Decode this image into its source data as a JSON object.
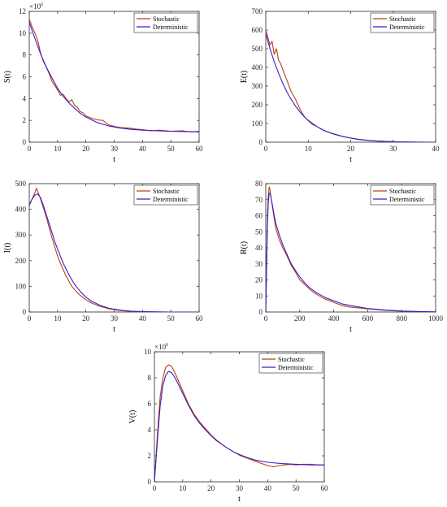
{
  "chart_data": [
    {
      "type": "line",
      "xlabel": "t",
      "ylabel": "S(t)",
      "xlim": [
        0,
        60
      ],
      "ylim": [
        0,
        12
      ],
      "y_multiplier": "×10^6",
      "xticks": [
        "0",
        "10",
        "20",
        "30",
        "40",
        "50",
        "60"
      ],
      "yticks": [
        "0",
        "2",
        "4",
        "6",
        "8",
        "10",
        "12"
      ],
      "legend_position": "top-right",
      "series": [
        {
          "name": "Stochastic",
          "color": "#b5401c",
          "x": [
            0,
            1,
            2,
            3,
            4,
            5,
            6,
            7,
            8,
            9,
            10,
            11,
            12,
            13,
            14,
            15,
            16,
            17,
            18,
            19,
            20,
            22,
            24,
            26,
            28,
            30,
            32,
            35,
            38,
            40,
            43,
            46,
            50,
            54,
            57,
            60
          ],
          "y": [
            11.3,
            10.6,
            10.0,
            9.3,
            8.2,
            7.4,
            6.9,
            6.3,
            5.6,
            5.2,
            4.8,
            4.3,
            4.4,
            4.0,
            3.7,
            3.9,
            3.4,
            3.2,
            2.8,
            2.7,
            2.4,
            2.2,
            2.05,
            2.0,
            1.6,
            1.45,
            1.35,
            1.3,
            1.2,
            1.15,
            1.05,
            1.1,
            1.0,
            1.05,
            0.95,
            1.0
          ]
        },
        {
          "name": "Deterministic",
          "color": "#3a1fc4",
          "x": [
            0,
            2,
            4,
            6,
            8,
            10,
            12,
            14,
            16,
            18,
            20,
            24,
            28,
            32,
            36,
            40,
            45,
            50,
            55,
            60
          ],
          "y": [
            11.0,
            9.5,
            8.1,
            6.9,
            5.9,
            4.95,
            4.2,
            3.6,
            3.1,
            2.65,
            2.3,
            1.8,
            1.5,
            1.3,
            1.18,
            1.1,
            1.04,
            1.0,
            0.98,
            0.95
          ]
        }
      ]
    },
    {
      "type": "line",
      "xlabel": "t",
      "ylabel": "E(t)",
      "xlim": [
        0,
        40
      ],
      "ylim": [
        0,
        700
      ],
      "xticks": [
        "0",
        "10",
        "20",
        "30",
        "40"
      ],
      "yticks": [
        "0",
        "100",
        "200",
        "300",
        "400",
        "500",
        "600",
        "700"
      ],
      "legend_position": "top-right",
      "series": [
        {
          "name": "Stochastic",
          "color": "#b5401c",
          "x": [
            0,
            0.5,
            1,
            1.5,
            2,
            2.5,
            3,
            3.5,
            4,
            4.5,
            5,
            6,
            7,
            8,
            9,
            10,
            11,
            12,
            13,
            14,
            15,
            16,
            18,
            20,
            22,
            25,
            28,
            32,
            36,
            40
          ],
          "y": [
            600,
            560,
            520,
            540,
            470,
            500,
            440,
            420,
            390,
            360,
            330,
            270,
            230,
            180,
            140,
            115,
            95,
            85,
            70,
            60,
            52,
            45,
            32,
            22,
            14,
            8,
            4,
            1,
            0,
            0
          ]
        },
        {
          "name": "Deterministic",
          "color": "#3a1fc4",
          "x": [
            0,
            1,
            2,
            3,
            4,
            5,
            6,
            7,
            8,
            9,
            10,
            12,
            14,
            16,
            18,
            20,
            22,
            25,
            28,
            32,
            36,
            40
          ],
          "y": [
            580,
            500,
            430,
            370,
            315,
            268,
            228,
            193,
            163,
            138,
            117,
            84,
            60,
            43,
            31,
            22,
            15,
            8,
            4,
            1.5,
            0.5,
            0
          ]
        }
      ]
    },
    {
      "type": "line",
      "xlabel": "t",
      "ylabel": "I(t)",
      "xlim": [
        0,
        60
      ],
      "ylim": [
        0,
        500
      ],
      "xticks": [
        "0",
        "10",
        "20",
        "30",
        "40",
        "50",
        "60"
      ],
      "yticks": [
        "0",
        "100",
        "200",
        "300",
        "400",
        "500"
      ],
      "legend_position": "top-right",
      "series": [
        {
          "name": "Stochastic",
          "color": "#b5401c",
          "x": [
            0,
            1,
            2,
            2.5,
            3,
            4,
            5,
            6,
            7,
            8,
            9,
            10,
            11,
            12,
            13,
            14,
            15,
            16,
            17,
            18,
            20,
            22,
            24,
            26,
            28,
            30,
            33,
            36,
            40,
            45,
            50,
            55,
            60
          ],
          "y": [
            420,
            440,
            465,
            482,
            470,
            440,
            405,
            370,
            330,
            290,
            255,
            218,
            190,
            165,
            140,
            120,
            100,
            88,
            75,
            65,
            48,
            35,
            26,
            19,
            13,
            9,
            5,
            3,
            1,
            0,
            0,
            0,
            0
          ]
        },
        {
          "name": "Deterministic",
          "color": "#3a1fc4",
          "x": [
            0,
            1,
            2,
            3,
            4,
            5,
            6,
            7,
            8,
            9,
            10,
            12,
            14,
            16,
            18,
            20,
            22,
            25,
            28,
            30,
            33,
            36,
            40,
            45,
            50,
            55,
            60
          ],
          "y": [
            415,
            440,
            455,
            460,
            445,
            415,
            380,
            345,
            310,
            275,
            245,
            190,
            145,
            108,
            80,
            58,
            42,
            26,
            15,
            11,
            6,
            3,
            1.5,
            0.5,
            0,
            0,
            0
          ]
        }
      ]
    },
    {
      "type": "line",
      "xlabel": "t",
      "ylabel": "R(t)",
      "xlim": [
        0,
        1000
      ],
      "ylim": [
        0,
        80
      ],
      "xticks": [
        "0",
        "200",
        "400",
        "600",
        "800",
        "1000"
      ],
      "yticks": [
        "0",
        "10",
        "20",
        "30",
        "40",
        "50",
        "60",
        "70",
        "80"
      ],
      "legend_position": "top-right",
      "series": [
        {
          "name": "Stochastic",
          "color": "#b5401c",
          "x": [
            0,
            5,
            10,
            15,
            20,
            25,
            30,
            40,
            50,
            60,
            80,
            100,
            120,
            150,
            180,
            200,
            230,
            260,
            300,
            350,
            400,
            450,
            500,
            600,
            700,
            800,
            900,
            1000
          ],
          "y": [
            0,
            30,
            60,
            72,
            78,
            76,
            72,
            65,
            58,
            52,
            45,
            40,
            36,
            29,
            24,
            20,
            17,
            14,
            11,
            8,
            6,
            4,
            3,
            2,
            1,
            0.5,
            0.2,
            0
          ]
        },
        {
          "name": "Deterministic",
          "color": "#3a1fc4",
          "x": [
            0,
            5,
            10,
            15,
            20,
            25,
            30,
            40,
            50,
            60,
            80,
            100,
            120,
            150,
            180,
            200,
            230,
            260,
            300,
            350,
            400,
            450,
            500,
            600,
            700,
            800,
            900,
            1000
          ],
          "y": [
            0,
            28,
            55,
            68,
            74,
            74,
            72,
            66,
            60,
            55,
            48,
            42,
            37,
            30,
            25,
            22,
            18,
            15,
            12,
            9,
            7,
            5,
            4,
            2.2,
            1.2,
            0.6,
            0.3,
            0.1
          ]
        }
      ]
    },
    {
      "type": "line",
      "xlabel": "t",
      "ylabel": "V(t)",
      "xlim": [
        0,
        60
      ],
      "ylim": [
        0,
        10
      ],
      "y_multiplier": "×10^6",
      "xticks": [
        "0",
        "10",
        "20",
        "30",
        "40",
        "50",
        "60"
      ],
      "yticks": [
        "0",
        "2",
        "4",
        "6",
        "8",
        "10"
      ],
      "legend_position": "top-right",
      "series": [
        {
          "name": "Stochastic",
          "color": "#b5401c",
          "x": [
            0,
            1,
            2,
            3,
            4,
            5,
            6,
            7,
            8,
            10,
            12,
            14,
            16,
            18,
            20,
            22,
            25,
            28,
            30,
            33,
            36,
            38,
            40,
            42,
            44,
            46,
            48,
            50,
            52,
            55,
            58,
            60
          ],
          "y": [
            0,
            3.5,
            6.5,
            8.0,
            8.8,
            9.0,
            8.9,
            8.5,
            8.0,
            7.0,
            6.0,
            5.2,
            4.6,
            4.1,
            3.6,
            3.2,
            2.7,
            2.3,
            2.05,
            1.8,
            1.55,
            1.4,
            1.25,
            1.15,
            1.25,
            1.3,
            1.35,
            1.3,
            1.35,
            1.35,
            1.3,
            1.3
          ]
        },
        {
          "name": "Deterministic",
          "color": "#3a1fc4",
          "x": [
            0,
            1,
            2,
            3,
            4,
            5,
            6,
            7,
            8,
            10,
            12,
            14,
            16,
            18,
            20,
            22,
            25,
            28,
            30,
            33,
            36,
            40,
            45,
            50,
            55,
            60
          ],
          "y": [
            0,
            3.0,
            5.8,
            7.4,
            8.2,
            8.5,
            8.4,
            8.1,
            7.7,
            6.8,
            5.9,
            5.1,
            4.5,
            4.0,
            3.55,
            3.15,
            2.7,
            2.3,
            2.1,
            1.85,
            1.65,
            1.5,
            1.4,
            1.35,
            1.3,
            1.3
          ]
        }
      ]
    }
  ]
}
